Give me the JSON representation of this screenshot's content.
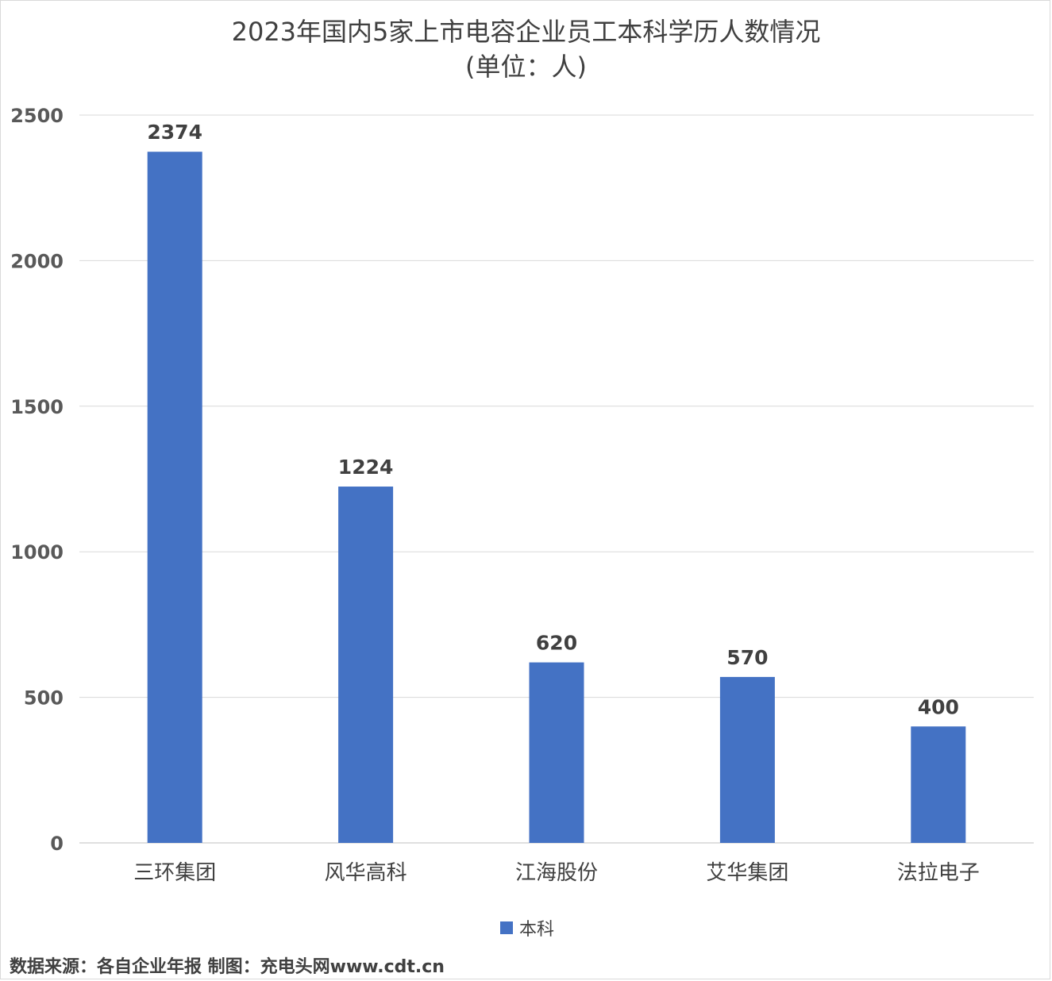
{
  "chart_data": {
    "type": "bar",
    "title": "2023年国内5家上市电容企业员工本科学历人数情况",
    "subtitle": "(单位：人)",
    "categories": [
      "三环集团",
      "风华高科",
      "江海股份",
      "艾华集团",
      "法拉电子"
    ],
    "series": [
      {
        "name": "本科",
        "values": [
          2374,
          1224,
          620,
          570,
          400
        ],
        "color": "#4472C4"
      }
    ],
    "data_labels": [
      "2374",
      "1224",
      "620",
      "570",
      "400"
    ],
    "ylim": [
      0,
      2500
    ],
    "yticks": [
      0,
      500,
      1000,
      1500,
      2000,
      2500
    ],
    "ytick_labels": [
      "0",
      "500",
      "1000",
      "1500",
      "2000",
      "2500"
    ],
    "grid": true,
    "legend_position": "bottom"
  },
  "source_text": "数据来源：各自企业年报  制图：充电头网www.cdt.cn"
}
